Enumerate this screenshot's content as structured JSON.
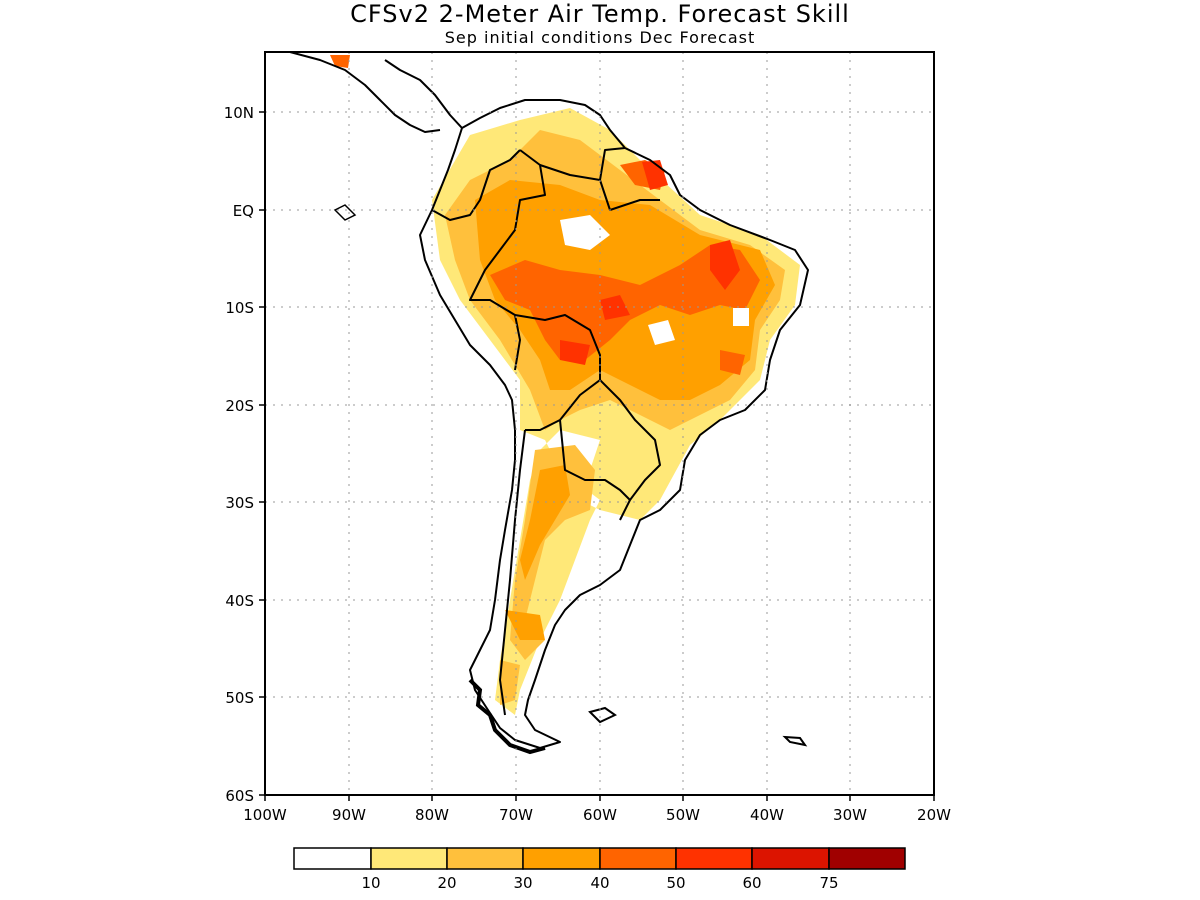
{
  "title": "CFSv2 2-Meter Air Temp. Forecast Skill",
  "subtitle": "Sep initial conditions  Dec Forecast",
  "axes": {
    "lat_labels": [
      "10N",
      "EQ",
      "10S",
      "20S",
      "30S",
      "40S",
      "50S",
      "60S"
    ],
    "lon_labels": [
      "100W",
      "90W",
      "80W",
      "70W",
      "60W",
      "50W",
      "40W",
      "30W",
      "20W"
    ],
    "lat_range": [
      -60,
      15
    ],
    "lon_range": [
      -100,
      -20
    ],
    "grid": "dotted"
  },
  "colorbar": {
    "labels": [
      "10",
      "20",
      "30",
      "40",
      "50",
      "60",
      "75"
    ],
    "colors": [
      "#ffffff",
      "#ffe878",
      "#ffc03c",
      "#ffa000",
      "#ff6400",
      "#ff3200",
      "#dc1400",
      "#a00000"
    ]
  }
}
